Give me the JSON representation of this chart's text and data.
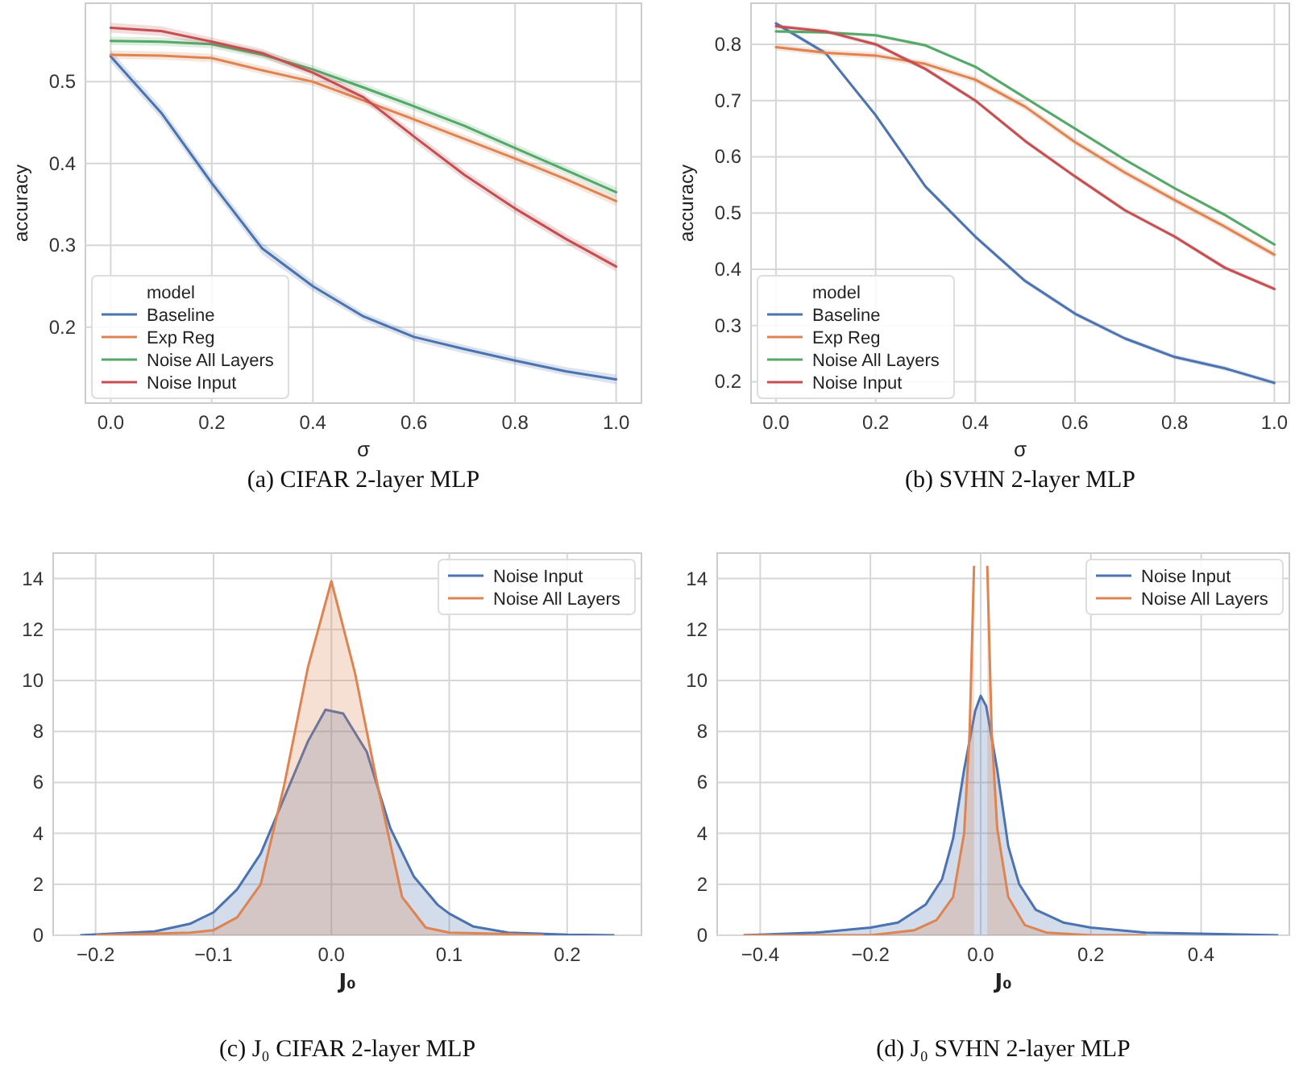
{
  "chart_data": [
    {
      "type": "line",
      "annotations": [
        "(a) CIFAR 2-layer MLP"
      ],
      "xlabel": "σ",
      "ylabel": "accuracy",
      "legend_title": "model",
      "legend": "bottom left",
      "grid": true,
      "x": [
        0,
        0.1,
        0.2,
        0.3,
        0.4,
        0.5,
        0.6,
        0.7,
        0.8,
        0.9,
        1.0
      ],
      "xlim": [
        -0.05,
        1.05
      ],
      "ylim": [
        0.107,
        0.596
      ],
      "xticks": [
        {
          "value": 0,
          "label": "0.0"
        },
        0.2,
        0.4,
        0.6,
        0.8,
        {
          "value": 1,
          "label": "1.0"
        }
      ],
      "yticks": [
        0.2,
        0.3,
        0.4,
        0.5
      ],
      "series": [
        {
          "name": "Baseline",
          "color": "#4c72b0",
          "values": [
            0.531,
            0.462,
            0.376,
            0.296,
            0.25,
            0.213,
            0.188,
            0.173,
            0.159,
            0.146,
            0.136
          ],
          "lower": [
            0.524,
            0.455,
            0.369,
            0.289,
            0.244,
            0.208,
            0.183,
            0.168,
            0.154,
            0.141,
            0.13
          ],
          "upper": [
            0.538,
            0.469,
            0.383,
            0.303,
            0.256,
            0.218,
            0.193,
            0.178,
            0.164,
            0.151,
            0.142
          ]
        },
        {
          "name": "Exp Reg",
          "color": "#dd8452",
          "values": [
            0.533,
            0.532,
            0.529,
            0.514,
            0.5,
            0.477,
            0.454,
            0.43,
            0.406,
            0.381,
            0.354
          ],
          "lower": [
            0.528,
            0.527,
            0.524,
            0.509,
            0.495,
            0.472,
            0.449,
            0.425,
            0.401,
            0.376,
            0.348
          ],
          "upper": [
            0.538,
            0.537,
            0.534,
            0.519,
            0.505,
            0.482,
            0.459,
            0.435,
            0.411,
            0.386,
            0.36
          ]
        },
        {
          "name": "Noise All Layers",
          "color": "#55a868",
          "values": [
            0.55,
            0.549,
            0.546,
            0.533,
            0.515,
            0.493,
            0.47,
            0.446,
            0.419,
            0.392,
            0.365
          ],
          "lower": [
            0.545,
            0.544,
            0.541,
            0.528,
            0.51,
            0.488,
            0.465,
            0.441,
            0.414,
            0.387,
            0.359
          ],
          "upper": [
            0.555,
            0.554,
            0.551,
            0.538,
            0.52,
            0.498,
            0.475,
            0.451,
            0.424,
            0.397,
            0.371
          ]
        },
        {
          "name": "Noise Input",
          "color": "#c44e52",
          "values": [
            0.566,
            0.562,
            0.549,
            0.535,
            0.511,
            0.481,
            0.433,
            0.386,
            0.345,
            0.308,
            0.274
          ],
          "lower": [
            0.56,
            0.556,
            0.544,
            0.53,
            0.506,
            0.476,
            0.427,
            0.38,
            0.339,
            0.302,
            0.268
          ],
          "upper": [
            0.572,
            0.568,
            0.554,
            0.54,
            0.516,
            0.486,
            0.439,
            0.392,
            0.351,
            0.314,
            0.28
          ]
        }
      ]
    },
    {
      "type": "line",
      "annotations": [
        "(b) SVHN 2-layer MLP"
      ],
      "xlabel": "σ",
      "ylabel": "accuracy",
      "legend_title": "model",
      "legend": "bottom left",
      "grid": true,
      "x": [
        0,
        0.1,
        0.2,
        0.3,
        0.4,
        0.5,
        0.6,
        0.7,
        0.8,
        0.9,
        1.0
      ],
      "xlim": [
        -0.05,
        1.03
      ],
      "ylim": [
        0.162,
        0.873
      ],
      "xticks": [
        {
          "value": 0,
          "label": "0.0"
        },
        0.2,
        0.4,
        0.6,
        0.8,
        {
          "value": 1,
          "label": "1.0"
        }
      ],
      "yticks": [
        0.2,
        0.3,
        0.4,
        0.5,
        0.6,
        0.7,
        0.8
      ],
      "series": [
        {
          "name": "Baseline",
          "color": "#4c72b0",
          "values": [
            0.837,
            0.784,
            0.674,
            0.547,
            0.458,
            0.379,
            0.321,
            0.277,
            0.244,
            0.224,
            0.198
          ],
          "lower": [
            0.833,
            0.78,
            0.67,
            0.543,
            0.454,
            0.375,
            0.317,
            0.273,
            0.24,
            0.22,
            0.194
          ],
          "upper": [
            0.841,
            0.788,
            0.678,
            0.551,
            0.462,
            0.383,
            0.325,
            0.281,
            0.248,
            0.228,
            0.202
          ]
        },
        {
          "name": "Exp Reg",
          "color": "#dd8452",
          "values": [
            0.795,
            0.785,
            0.78,
            0.765,
            0.737,
            0.689,
            0.626,
            0.572,
            0.523,
            0.476,
            0.426
          ],
          "lower": [
            0.789,
            0.779,
            0.774,
            0.759,
            0.731,
            0.683,
            0.62,
            0.566,
            0.517,
            0.47,
            0.42
          ],
          "upper": [
            0.801,
            0.791,
            0.786,
            0.771,
            0.743,
            0.695,
            0.632,
            0.578,
            0.529,
            0.482,
            0.432
          ]
        },
        {
          "name": "Noise All Layers",
          "color": "#55a868",
          "values": [
            0.823,
            0.821,
            0.816,
            0.798,
            0.76,
            0.705,
            0.65,
            0.595,
            0.544,
            0.497,
            0.444
          ],
          "lower": [
            0.82,
            0.818,
            0.813,
            0.795,
            0.757,
            0.702,
            0.647,
            0.592,
            0.541,
            0.494,
            0.441
          ],
          "upper": [
            0.826,
            0.824,
            0.819,
            0.801,
            0.763,
            0.708,
            0.653,
            0.598,
            0.547,
            0.5,
            0.447
          ]
        },
        {
          "name": "Noise Input",
          "color": "#c44e52",
          "values": [
            0.832,
            0.823,
            0.8,
            0.756,
            0.7,
            0.628,
            0.565,
            0.505,
            0.458,
            0.403,
            0.365
          ],
          "lower": [
            0.828,
            0.819,
            0.796,
            0.752,
            0.696,
            0.624,
            0.561,
            0.501,
            0.454,
            0.399,
            0.361
          ],
          "upper": [
            0.836,
            0.827,
            0.804,
            0.76,
            0.704,
            0.632,
            0.569,
            0.509,
            0.462,
            0.407,
            0.369
          ]
        }
      ]
    },
    {
      "type": "area",
      "annotations": [
        "(c) J₀ CIFAR 2-layer MLP"
      ],
      "xlabel": "J₀",
      "legend": "top right",
      "grid": true,
      "xlim": [
        -0.236,
        0.263
      ],
      "ylim": [
        0,
        15
      ],
      "xticks": [
        {
          "value": -0.2,
          "label": "−0.2"
        },
        {
          "value": -0.1,
          "label": "−0.1"
        },
        {
          "value": 0,
          "label": "0.0"
        },
        0.1,
        0.2
      ],
      "yticks": [
        0,
        2,
        4,
        6,
        8,
        10,
        12,
        14
      ],
      "series": [
        {
          "name": "Noise Input",
          "color": "#4c72b0",
          "x": [
            -0.213,
            -0.15,
            -0.12,
            -0.1,
            -0.08,
            -0.06,
            -0.04,
            -0.02,
            -0.005,
            0.01,
            0.03,
            0.05,
            0.07,
            0.09,
            0.1,
            0.12,
            0.15,
            0.2,
            0.24
          ],
          "values": [
            0,
            0.15,
            0.45,
            0.9,
            1.8,
            3.2,
            5.4,
            7.6,
            8.85,
            8.7,
            7.2,
            4.2,
            2.3,
            1.2,
            0.85,
            0.35,
            0.1,
            0.02,
            0
          ]
        },
        {
          "name": "Noise All Layers",
          "color": "#dd8452",
          "x": [
            -0.2,
            -0.12,
            -0.1,
            -0.08,
            -0.06,
            -0.04,
            -0.02,
            0,
            0.02,
            0.04,
            0.06,
            0.08,
            0.1,
            0.15,
            0.18
          ],
          "values": [
            0,
            0.1,
            0.2,
            0.7,
            2.0,
            5.9,
            10.5,
            13.9,
            10.3,
            5.7,
            1.5,
            0.3,
            0.1,
            0.05,
            0
          ]
        }
      ]
    },
    {
      "type": "area",
      "annotations": [
        "(d) J₀ SVHN 2-layer MLP"
      ],
      "xlabel": "J₀",
      "legend": "top right",
      "grid": true,
      "xlim": [
        -0.478,
        0.56
      ],
      "ylim": [
        0,
        15
      ],
      "xticks": [
        {
          "value": -0.4,
          "label": "−0.4"
        },
        {
          "value": -0.2,
          "label": "−0.2"
        },
        {
          "value": 0,
          "label": "0.0"
        },
        0.2,
        0.4
      ],
      "yticks": [
        0,
        2,
        4,
        6,
        8,
        10,
        12,
        14
      ],
      "series": [
        {
          "name": "Noise Input",
          "color": "#4c72b0",
          "x": [
            -0.43,
            -0.3,
            -0.2,
            -0.15,
            -0.1,
            -0.07,
            -0.05,
            -0.03,
            -0.01,
            0,
            0.01,
            0.03,
            0.05,
            0.07,
            0.1,
            0.15,
            0.2,
            0.3,
            0.54
          ],
          "values": [
            0,
            0.1,
            0.3,
            0.5,
            1.2,
            2.2,
            3.8,
            6.5,
            8.8,
            9.4,
            9.0,
            6.5,
            3.5,
            2.0,
            1.0,
            0.5,
            0.3,
            0.1,
            0
          ]
        },
        {
          "name": "Noise All Layers",
          "color": "#dd8452",
          "x": [
            -0.43,
            -0.2,
            -0.12,
            -0.08,
            -0.05,
            -0.03,
            -0.02,
            -0.012,
            0,
            0.012,
            0.02,
            0.03,
            0.05,
            0.08,
            0.12,
            0.2,
            0.3
          ],
          "values": [
            0,
            0,
            0.2,
            0.6,
            1.5,
            4,
            8,
            14.5,
            null,
            14.5,
            8,
            4.2,
            1.5,
            0.4,
            0.1,
            0,
            0
          ]
        }
      ]
    }
  ]
}
